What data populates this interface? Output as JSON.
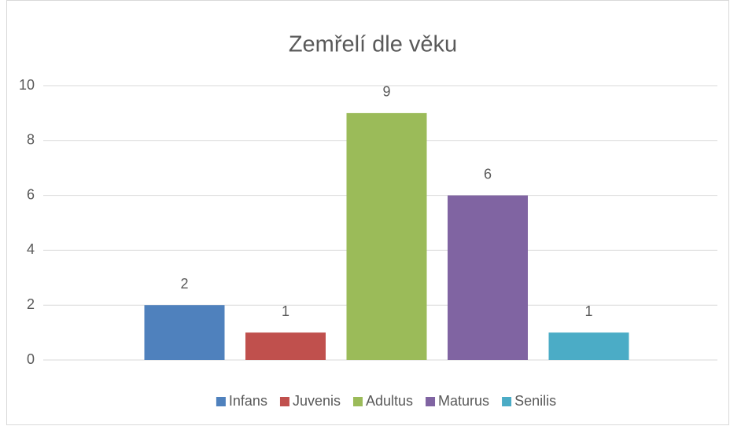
{
  "chart_data": {
    "type": "bar",
    "title": "Zemřelí dle věku",
    "categories": [
      null
    ],
    "series": [
      {
        "name": "Infans",
        "color": "#4f81bd",
        "values": [
          2
        ]
      },
      {
        "name": "Juvenis",
        "color": "#c0504d",
        "values": [
          1
        ]
      },
      {
        "name": "Adultus",
        "color": "#9bbb59",
        "values": [
          9
        ]
      },
      {
        "name": "Maturus",
        "color": "#8064a2",
        "values": [
          6
        ]
      },
      {
        "name": "Senilis",
        "color": "#4bacc6",
        "values": [
          1
        ]
      }
    ],
    "ylim": [
      0,
      10
    ],
    "yticks": [
      0,
      2,
      4,
      6,
      8,
      10
    ],
    "grid": true,
    "legend": "bottom",
    "data_labels": true
  }
}
